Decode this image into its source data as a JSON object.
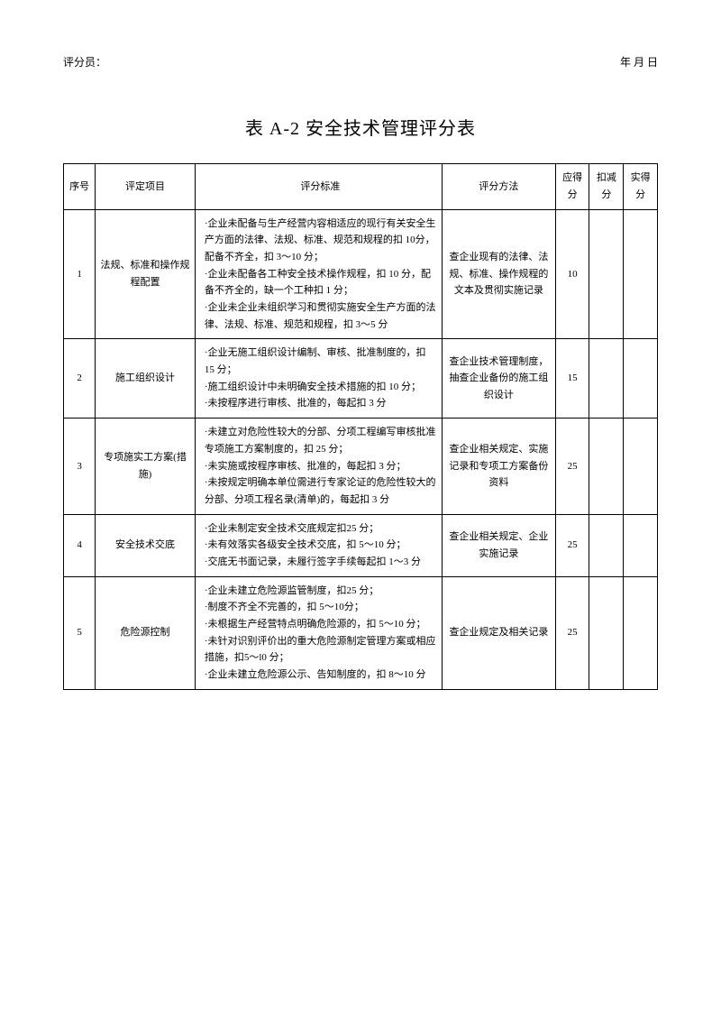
{
  "header": {
    "scorer_label": "评分员：",
    "date_label": "年  月  日"
  },
  "title": "表 A-2 安全技术管理评分表",
  "columns": {
    "seq": "序号",
    "item": "评定项目",
    "standard": "评分标准",
    "method": "评分方法",
    "score_due": "应得分",
    "deduct": "扣减分",
    "score_act": "实得分"
  },
  "rows": [
    {
      "seq": "1",
      "item": "法规、标准和操作规程配置",
      "standard": "·企业未配备与生产经营内容相适应的现行有关安全生产方面的法律、法规、标准、规范和规程的扣 10分，配备不齐全，扣 3～10 分；\n·企业未配备各工种安全技术操作规程，扣 10 分，配备不齐全的，缺一个工种扣 1 分；\n·企业未企业未组织学习和贯彻实施安全生产方面的法律、法规、标准、规范和规程，扣 3～5 分",
      "method": "查企业现有的法律、法规、标准、操作规程的文本及贯彻实施记录",
      "score_due": "10",
      "deduct": "",
      "score_act": ""
    },
    {
      "seq": "2",
      "item": "施工组织设计",
      "standard": "·企业无施工组织设计编制、审核、批准制度的，扣 15 分；\n·施工组织设计中未明确安全技术措施的扣 10 分；\n·未按程序进行审核、批准的，每起扣 3 分",
      "method": "查企业技术管理制度，抽查企业备份的施工组织设计",
      "score_due": "15",
      "deduct": "",
      "score_act": ""
    },
    {
      "seq": "3",
      "item": "专项施实工方案(措施)",
      "standard": "·未建立对危险性较大的分部、分项工程编写审核批准专项施工方案制度的，扣 25 分；\n·未实施或按程序审核、批准的，每起扣 3 分；\n·未按规定明确本单位需进行专家论证的危险性较大的分部、分项工程名录(清单)的，每起扣 3 分",
      "method": "查企业相关规定、实施记录和专项工方案备份资料",
      "score_due": "25",
      "deduct": "",
      "score_act": ""
    },
    {
      "seq": "4",
      "item": "安全技术交底",
      "standard": "·企业未制定安全技术交底规定扣25 分；\n·未有效落实各级安全技术交底，扣 5～10 分；\n·交底无书面记录，未履行签字手续每起扣 1～3 分",
      "method": "查企业相关规定、企业实施记录",
      "score_due": "25",
      "deduct": "",
      "score_act": ""
    },
    {
      "seq": "5",
      "item": "危险源控制",
      "standard": "·企业未建立危险源监管制度，扣25 分；\n·制度不齐全不完善的，扣 5～10分；\n·未根据生产经营特点明确危险源的，扣 5～10 分；\n·未针对识别评价出的重大危险源制定管理方案或相应措施，扣5～l0 分；\n·企业未建立危险源公示、告知制度的，扣 8～10 分",
      "method": "查企业规定及相关记录",
      "score_due": "25",
      "deduct": "",
      "score_act": ""
    }
  ]
}
